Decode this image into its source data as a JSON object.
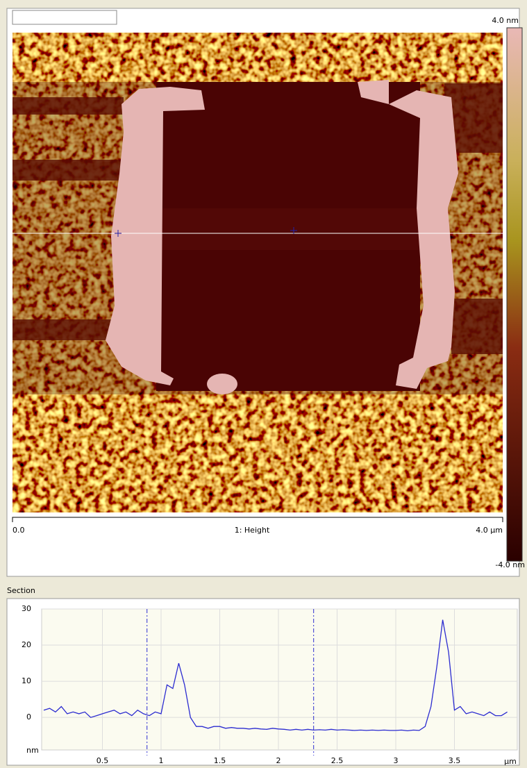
{
  "image_panel": {
    "colorbar_max": "4.0 nm",
    "colorbar_min": "-4.0 nm",
    "x_start": "0.0",
    "channel": "1: Height",
    "x_end": "4.0 µm"
  },
  "section_label": "Section",
  "chart_data": {
    "type": "line",
    "x": [
      0,
      0.05,
      0.1,
      0.15,
      0.2,
      0.25,
      0.3,
      0.35,
      0.4,
      0.45,
      0.5,
      0.55,
      0.6,
      0.65,
      0.7,
      0.75,
      0.8,
      0.85,
      0.9,
      0.95,
      1,
      1.05,
      1.1,
      1.15,
      1.2,
      1.25,
      1.3,
      1.35,
      1.4,
      1.45,
      1.5,
      1.55,
      1.6,
      1.65,
      1.7,
      1.75,
      1.8,
      1.85,
      1.9,
      1.95,
      2,
      2.05,
      2.1,
      2.15,
      2.2,
      2.25,
      2.3,
      2.35,
      2.4,
      2.45,
      2.5,
      2.55,
      2.6,
      2.65,
      2.7,
      2.75,
      2.8,
      2.85,
      2.9,
      2.95,
      3,
      3.05,
      3.1,
      3.15,
      3.2,
      3.25,
      3.3,
      3.35,
      3.4,
      3.45,
      3.5,
      3.55,
      3.6,
      3.65,
      3.7,
      3.75,
      3.8,
      3.85,
      3.9,
      3.95
    ],
    "series": [
      {
        "color": "#2b2bd0",
        "values": [
          2,
          2.5,
          1.5,
          3,
          1,
          1.5,
          1,
          1.5,
          0,
          0.5,
          1,
          1.5,
          2,
          1,
          1.5,
          0.5,
          2,
          1,
          0.5,
          1.5,
          1,
          9,
          8,
          15,
          9,
          0,
          -2.5,
          -2.5,
          -3,
          -2.5,
          -2.5,
          -3,
          -2.8,
          -3,
          -3,
          -3.2,
          -3,
          -3.2,
          -3.3,
          -3,
          -3.2,
          -3.3,
          -3.5,
          -3.3,
          -3.5,
          -3.3,
          -3.5,
          -3.4,
          -3.5,
          -3.3,
          -3.5,
          -3.4,
          -3.5,
          -3.6,
          -3.5,
          -3.6,
          -3.5,
          -3.6,
          -3.5,
          -3.6,
          -3.6,
          -3.5,
          -3.7,
          -3.5,
          -3.6,
          -2.5,
          3,
          14,
          27,
          18,
          2,
          3,
          1,
          1.5,
          1,
          0.5,
          1.5,
          0.5,
          0.5,
          1.5
        ]
      }
    ],
    "xlim": [
      0,
      4
    ],
    "ylim": [
      -9,
      30
    ],
    "xticks": [
      0.5,
      1,
      1.5,
      2,
      2.5,
      3,
      3.5
    ],
    "yticks": [
      0,
      10,
      20,
      30
    ],
    "x_unit": "µm",
    "y_unit": "nm",
    "cursors": [
      0.88,
      2.3
    ],
    "cursor_color": "#2b2bd0",
    "grid": true
  }
}
